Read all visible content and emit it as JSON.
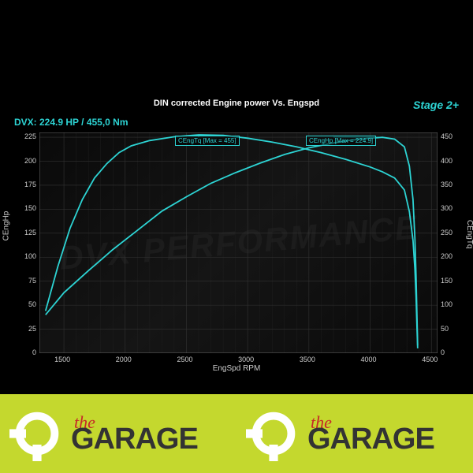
{
  "chart": {
    "title": "DIN corrected Engine power Vs. Engspd",
    "stage": "Stage 2+",
    "dvx": "DVX:  224.9 HP / 455,0 Nm",
    "xlabel": "EngSpd RPM",
    "ylabel_left": "CEngHp",
    "ylabel_right": "CEngTq",
    "xlim": [
      1300,
      4550
    ],
    "ylim_left": [
      0,
      230
    ],
    "ylim_right": [
      0,
      460
    ],
    "xticks": [
      1500,
      2000,
      2500,
      3000,
      3500,
      4000,
      4500
    ],
    "yticks_left": [
      0,
      25,
      50,
      75,
      100,
      125,
      150,
      175,
      200,
      225
    ],
    "yticks_right": [
      0,
      50,
      100,
      150,
      200,
      250,
      300,
      350,
      400,
      450
    ],
    "grid_color": "#333333",
    "bg_color": "#000000",
    "line_color": "#2dd4d4",
    "callout_tq": "CEngTq [Max = 455]",
    "callout_hp": "CEngHp [Max = 224.9]",
    "series_hp": [
      [
        1350,
        40
      ],
      [
        1500,
        63
      ],
      [
        1700,
        86
      ],
      [
        1900,
        108
      ],
      [
        2100,
        128
      ],
      [
        2300,
        148
      ],
      [
        2500,
        163
      ],
      [
        2700,
        177
      ],
      [
        2900,
        188
      ],
      [
        3100,
        198
      ],
      [
        3300,
        207
      ],
      [
        3500,
        214
      ],
      [
        3700,
        219
      ],
      [
        3850,
        222
      ],
      [
        4000,
        224
      ],
      [
        4100,
        224.9
      ],
      [
        4200,
        223
      ],
      [
        4280,
        215
      ],
      [
        4320,
        195
      ],
      [
        4350,
        160
      ],
      [
        4365,
        120
      ],
      [
        4375,
        80
      ],
      [
        4382,
        40
      ],
      [
        4388,
        8
      ]
    ],
    "series_tq": [
      [
        1350,
        88
      ],
      [
        1450,
        180
      ],
      [
        1550,
        260
      ],
      [
        1650,
        320
      ],
      [
        1750,
        365
      ],
      [
        1850,
        395
      ],
      [
        1950,
        418
      ],
      [
        2050,
        432
      ],
      [
        2200,
        443
      ],
      [
        2400,
        451
      ],
      [
        2600,
        455
      ],
      [
        2800,
        454
      ],
      [
        3000,
        448
      ],
      [
        3200,
        440
      ],
      [
        3400,
        430
      ],
      [
        3600,
        418
      ],
      [
        3800,
        404
      ],
      [
        4000,
        388
      ],
      [
        4100,
        378
      ],
      [
        4200,
        365
      ],
      [
        4280,
        340
      ],
      [
        4320,
        295
      ],
      [
        4350,
        235
      ],
      [
        4365,
        175
      ],
      [
        4375,
        115
      ],
      [
        4382,
        55
      ],
      [
        4388,
        10
      ]
    ],
    "watermark": "DVX PERFORMANCE"
  },
  "logo": {
    "the": "the",
    "garage": "GARAGE",
    "strip_bg": "#c4d82e",
    "wrench_color": "#ffffff",
    "the_color": "#c62828",
    "garage_color": "#333333"
  }
}
